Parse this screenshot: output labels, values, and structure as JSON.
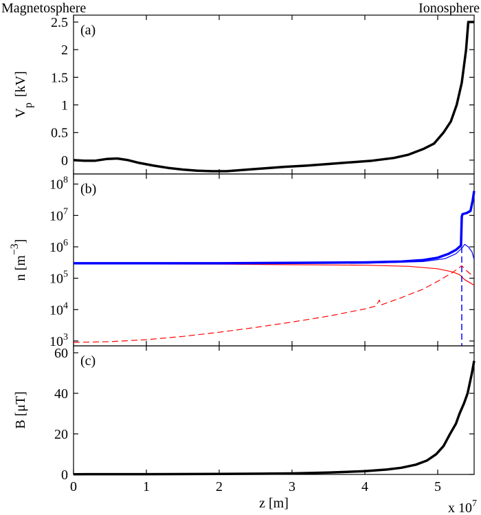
{
  "chart_data": [
    {
      "type": "line",
      "left_label": "Magnetosphere",
      "right_label": "Ionosphere",
      "panel_label": "(a)",
      "ylabel": "V",
      "ylabel_sub": "p",
      "ylabel_unit": "[kV]",
      "xlim": [
        0,
        5.5
      ],
      "xticks": [
        0,
        1,
        2,
        3,
        4,
        5
      ],
      "ylim": [
        -0.25,
        2.625
      ],
      "yticks": [
        0,
        0.5,
        1,
        1.5,
        2,
        2.5
      ],
      "series": [
        {
          "color": "#000000",
          "width": 3.5,
          "x": [
            0,
            0.15,
            0.3,
            0.45,
            0.6,
            0.75,
            0.9,
            1.1,
            1.3,
            1.5,
            1.7,
            1.9,
            2.1,
            2.3,
            2.6,
            2.9,
            3.2,
            3.5,
            3.8,
            4.1,
            4.4,
            4.6,
            4.8,
            4.95,
            5.08,
            5.18,
            5.26,
            5.33,
            5.37,
            5.39,
            5.42,
            5.5
          ],
          "values": [
            0,
            -0.01,
            -0.01,
            0.02,
            0.03,
            0.0,
            -0.05,
            -0.1,
            -0.14,
            -0.17,
            -0.19,
            -0.2,
            -0.2,
            -0.18,
            -0.15,
            -0.12,
            -0.1,
            -0.07,
            -0.04,
            -0.01,
            0.04,
            0.1,
            0.2,
            0.3,
            0.5,
            0.7,
            1.0,
            1.4,
            1.8,
            2.0,
            2.5,
            2.5
          ]
        }
      ]
    },
    {
      "type": "line",
      "panel_label": "(b)",
      "log_y": true,
      "ylabel": "n  [m",
      "ylabel_sup": "−3",
      "ylabel_end": "]",
      "xlim": [
        0,
        5.5
      ],
      "xticks": [
        0,
        1,
        2,
        3,
        4,
        5
      ],
      "ylim": [
        700,
        210000000
      ],
      "yticks": [
        {
          "value": 1000,
          "label": "10^3"
        },
        {
          "value": 10000,
          "label": "10^4"
        },
        {
          "value": 100000,
          "label": "10^5"
        },
        {
          "value": 1000000,
          "label": "10^6"
        },
        {
          "value": 10000000,
          "label": "10^7"
        },
        {
          "value": 100000000,
          "label": "10^8"
        }
      ],
      "series": [
        {
          "color": "#ff0000",
          "width": 1.2,
          "x": [
            0,
            2,
            4,
            4.6,
            5.0,
            5.2,
            5.3,
            5.37,
            5.45,
            5.5
          ],
          "values": [
            290000,
            280000,
            260000,
            240000,
            200000,
            160000,
            130000,
            90000,
            70000,
            60000
          ]
        },
        {
          "color": "#ff0000",
          "width": 1.2,
          "dash": "9 5",
          "x": [
            0,
            0.5,
            1,
            1.5,
            2,
            2.5,
            3,
            3.5,
            4,
            4.15,
            4.2,
            4.22,
            4.5,
            4.8,
            5.0,
            5.2,
            5.33,
            5.4,
            5.5
          ],
          "values": [
            900,
            950,
            1100,
            1400,
            1900,
            2700,
            4000,
            6200,
            10500,
            13000,
            20000,
            14000,
            24000,
            45000,
            80000,
            150000,
            250000,
            170000,
            110000
          ]
        },
        {
          "color": "#0000ff",
          "width": 1.2,
          "x": [
            0,
            2,
            4,
            4.8,
            5.1,
            5.25,
            5.33,
            5.37,
            5.42,
            5.47,
            5.5
          ],
          "values": [
            290000,
            290000,
            300000,
            340000,
            420000,
            600000,
            900000,
            1200000,
            1000000,
            700000,
            400000
          ]
        },
        {
          "color": "#0000ff",
          "width": 1.5,
          "dash": "9 5",
          "x": [
            5.33,
            5.33
          ],
          "values": [
            1000000,
            700
          ]
        },
        {
          "color": "#0000ff",
          "width": 3.5,
          "x": [
            0,
            1,
            2,
            3,
            4,
            4.5,
            4.8,
            5.0,
            5.15,
            5.25,
            5.32,
            5.33,
            5.34,
            5.4,
            5.45,
            5.48,
            5.5
          ],
          "values": [
            300000,
            300000,
            300000,
            310000,
            320000,
            340000,
            380000,
            450000,
            600000,
            800000,
            1100000,
            9000000,
            11000000,
            12000000,
            14000000,
            30000000,
            60000000
          ]
        }
      ]
    },
    {
      "type": "line",
      "panel_label": "(c)",
      "ylabel": "B  [μT]",
      "xlabel": "z   [m]",
      "x_multiplier": "x 10^7",
      "xlim": [
        0,
        5.5
      ],
      "xticks": [
        0,
        1,
        2,
        3,
        4,
        5
      ],
      "ylim": [
        0,
        63.4
      ],
      "yticks": [
        0,
        20,
        40,
        60
      ],
      "series": [
        {
          "color": "#000000",
          "width": 3.5,
          "x": [
            0,
            1,
            2,
            3,
            3.5,
            4,
            4.3,
            4.5,
            4.7,
            4.85,
            4.98,
            5.08,
            5.17,
            5.25,
            5.3,
            5.36,
            5.41,
            5.47,
            5.5
          ],
          "values": [
            0.1,
            0.15,
            0.25,
            0.5,
            0.9,
            1.6,
            2.4,
            3.3,
            4.8,
            6.8,
            10,
            14,
            20,
            25,
            30,
            35,
            40,
            50,
            56
          ]
        }
      ]
    }
  ]
}
